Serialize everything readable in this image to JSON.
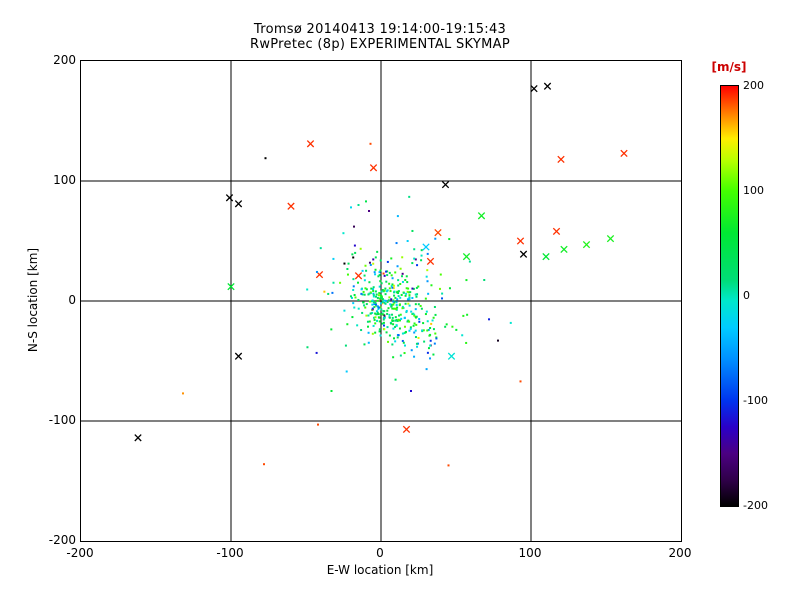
{
  "chart_data": {
    "type": "scatter",
    "title": "Tromsø 20140413 19:14:00-19:15:43",
    "subtitle": "RwPretec (8p) EXPERIMENTAL SKYMAP",
    "xlabel": "E-W location [km]",
    "ylabel": "N-S location [km]",
    "xlim": [
      -200,
      200
    ],
    "ylim": [
      -200,
      200
    ],
    "xticks": [
      -200,
      -100,
      0,
      100,
      200
    ],
    "yticks": [
      -200,
      -100,
      0,
      100,
      200
    ],
    "gridlines": [
      -100,
      0,
      100
    ],
    "grid": true,
    "legend_position": "right-colorbar",
    "colorbar": {
      "label": "[m/s]",
      "label_color": "#cc0000",
      "min": -200,
      "max": 200,
      "ticks": [
        200,
        100,
        0,
        -100,
        -200
      ],
      "stops": [
        {
          "v": -200,
          "c": "#000000"
        },
        {
          "v": -175,
          "c": "#30004a"
        },
        {
          "v": -150,
          "c": "#4b0082"
        },
        {
          "v": -125,
          "c": "#2a00c8"
        },
        {
          "v": -100,
          "c": "#0033ee"
        },
        {
          "v": -60,
          "c": "#0090ff"
        },
        {
          "v": -30,
          "c": "#00ccff"
        },
        {
          "v": -5,
          "c": "#00e8cc"
        },
        {
          "v": 15,
          "c": "#00dd77"
        },
        {
          "v": 60,
          "c": "#00e833"
        },
        {
          "v": 100,
          "c": "#44ff00"
        },
        {
          "v": 130,
          "c": "#bbff00"
        },
        {
          "v": 150,
          "c": "#ffee00"
        },
        {
          "v": 172,
          "c": "#ff8800"
        },
        {
          "v": 200,
          "c": "#ff0000"
        }
      ]
    },
    "points": [
      [
        102,
        177,
        -200,
        "x"
      ],
      [
        111,
        179,
        -200,
        "x"
      ],
      [
        162,
        123,
        190,
        "x"
      ],
      [
        120,
        118,
        190,
        "x"
      ],
      [
        -47,
        131,
        190,
        "x"
      ],
      [
        -7,
        131,
        185,
        "."
      ],
      [
        -5,
        111,
        190,
        "x"
      ],
      [
        -77,
        119,
        -200,
        "."
      ],
      [
        43,
        97,
        -200,
        "x"
      ],
      [
        -101,
        86,
        -200,
        "x"
      ],
      [
        -95,
        81,
        -200,
        "x"
      ],
      [
        -60,
        79,
        190,
        "x"
      ],
      [
        67,
        71,
        70,
        "x"
      ],
      [
        117,
        58,
        190,
        "x"
      ],
      [
        93,
        50,
        190,
        "x"
      ],
      [
        137,
        47,
        80,
        "x"
      ],
      [
        153,
        52,
        75,
        "x"
      ],
      [
        110,
        37,
        60,
        "x"
      ],
      [
        122,
        43,
        70,
        "x"
      ],
      [
        95,
        39,
        -200,
        "x"
      ],
      [
        33,
        33,
        190,
        "x"
      ],
      [
        38,
        57,
        185,
        "x"
      ],
      [
        57,
        37,
        70,
        "x"
      ],
      [
        -41,
        22,
        190,
        "x"
      ],
      [
        -15,
        21,
        190,
        "x"
      ],
      [
        -100,
        12,
        60,
        "x"
      ],
      [
        30,
        45,
        -30,
        "x"
      ],
      [
        78,
        -33,
        -190,
        "."
      ],
      [
        -95,
        -46,
        -200,
        "x"
      ],
      [
        -162,
        -114,
        -200,
        "x"
      ],
      [
        -132,
        -77,
        170,
        "."
      ],
      [
        -42,
        -103,
        185,
        "."
      ],
      [
        17,
        -107,
        190,
        "x"
      ],
      [
        45,
        -137,
        185,
        "."
      ],
      [
        -78,
        -136,
        185,
        "."
      ],
      [
        93,
        -67,
        185,
        "."
      ],
      [
        -33,
        -75,
        60,
        "."
      ],
      [
        47,
        -46,
        -10,
        "x"
      ],
      [
        20,
        -75,
        -120,
        "."
      ],
      [
        -18,
        62,
        -170,
        "."
      ],
      [
        -8,
        75,
        -150,
        "."
      ],
      [
        -15,
        80,
        10,
        "."
      ],
      [
        -20,
        78,
        -20,
        "."
      ],
      [
        -10,
        83,
        45,
        "."
      ]
    ],
    "clusters": [
      {
        "cx": 3,
        "cy": -2,
        "sx": 10,
        "sy": 12,
        "count": 240,
        "v_mean": 30,
        "v_sigma": 45,
        "seed": 11,
        "marker": "."
      },
      {
        "cx": 5,
        "cy": 8,
        "sx": 26,
        "sy": 28,
        "count": 130,
        "v_mean": 5,
        "v_sigma": 75,
        "seed": 22,
        "marker": "."
      },
      {
        "cx": 24,
        "cy": -24,
        "sx": 12,
        "sy": 11,
        "count": 70,
        "v_mean": 25,
        "v_sigma": 55,
        "seed": 33,
        "marker": "."
      }
    ]
  }
}
